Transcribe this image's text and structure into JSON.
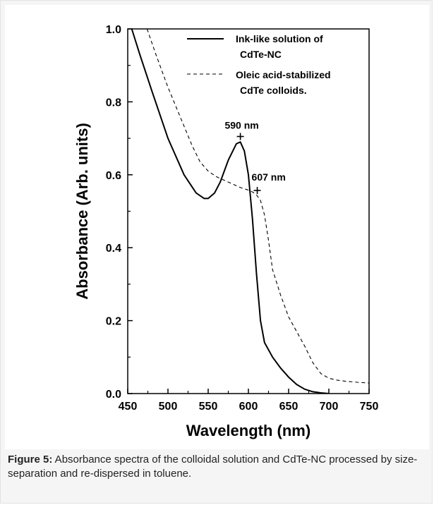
{
  "chart_data": {
    "type": "line",
    "xlabel": "Wavelength (nm)",
    "ylabel": "Absorbance (Arb. units)",
    "xlim": [
      450,
      750
    ],
    "ylim": [
      0.0,
      1.0
    ],
    "xticks": [
      "450",
      "500",
      "550",
      "600",
      "650",
      "700",
      "750"
    ],
    "yticks": [
      "0.0",
      "0.2",
      "0.4",
      "0.6",
      "0.8",
      "1.0"
    ],
    "grid": false,
    "legend_position": "top-right",
    "series": [
      {
        "name_lines": [
          "Ink-like solution of",
          "CdTe-NC"
        ],
        "style": "solid",
        "x": [
          455,
          465,
          480,
          500,
          520,
          535,
          545,
          550,
          558,
          565,
          575,
          585,
          590,
          595,
          600,
          605,
          610,
          615,
          620,
          630,
          640,
          650,
          660,
          670,
          680,
          690,
          700
        ],
        "y": [
          1.0,
          0.93,
          0.83,
          0.7,
          0.6,
          0.55,
          0.535,
          0.535,
          0.55,
          0.58,
          0.64,
          0.685,
          0.69,
          0.665,
          0.6,
          0.48,
          0.33,
          0.2,
          0.14,
          0.1,
          0.07,
          0.045,
          0.025,
          0.012,
          0.005,
          0.002,
          0.0
        ]
      },
      {
        "name_lines": [
          "Oleic acid-stabilized",
          "CdTe colloids."
        ],
        "style": "dashed",
        "x": [
          474,
          485,
          500,
          515,
          530,
          540,
          550,
          560,
          570,
          580,
          590,
          600,
          605,
          610,
          615,
          620,
          625,
          630,
          640,
          650,
          660,
          670,
          680,
          690,
          700,
          710,
          720,
          735,
          750
        ],
        "y": [
          1.0,
          0.93,
          0.84,
          0.76,
          0.68,
          0.635,
          0.61,
          0.595,
          0.585,
          0.575,
          0.565,
          0.558,
          0.553,
          0.545,
          0.53,
          0.49,
          0.42,
          0.34,
          0.27,
          0.21,
          0.17,
          0.13,
          0.085,
          0.055,
          0.042,
          0.037,
          0.034,
          0.031,
          0.029
        ]
      }
    ],
    "annotations": [
      {
        "label": "590 nm",
        "x": 590,
        "y": 0.705
      },
      {
        "label": "607 nm",
        "x": 611,
        "y": 0.557
      }
    ]
  },
  "caption": {
    "label": "Figure 5:",
    "text": " Absorbance spectra of the colloidal solution and CdTe-NC processed by size-separation and re-dispersed in toluene."
  }
}
